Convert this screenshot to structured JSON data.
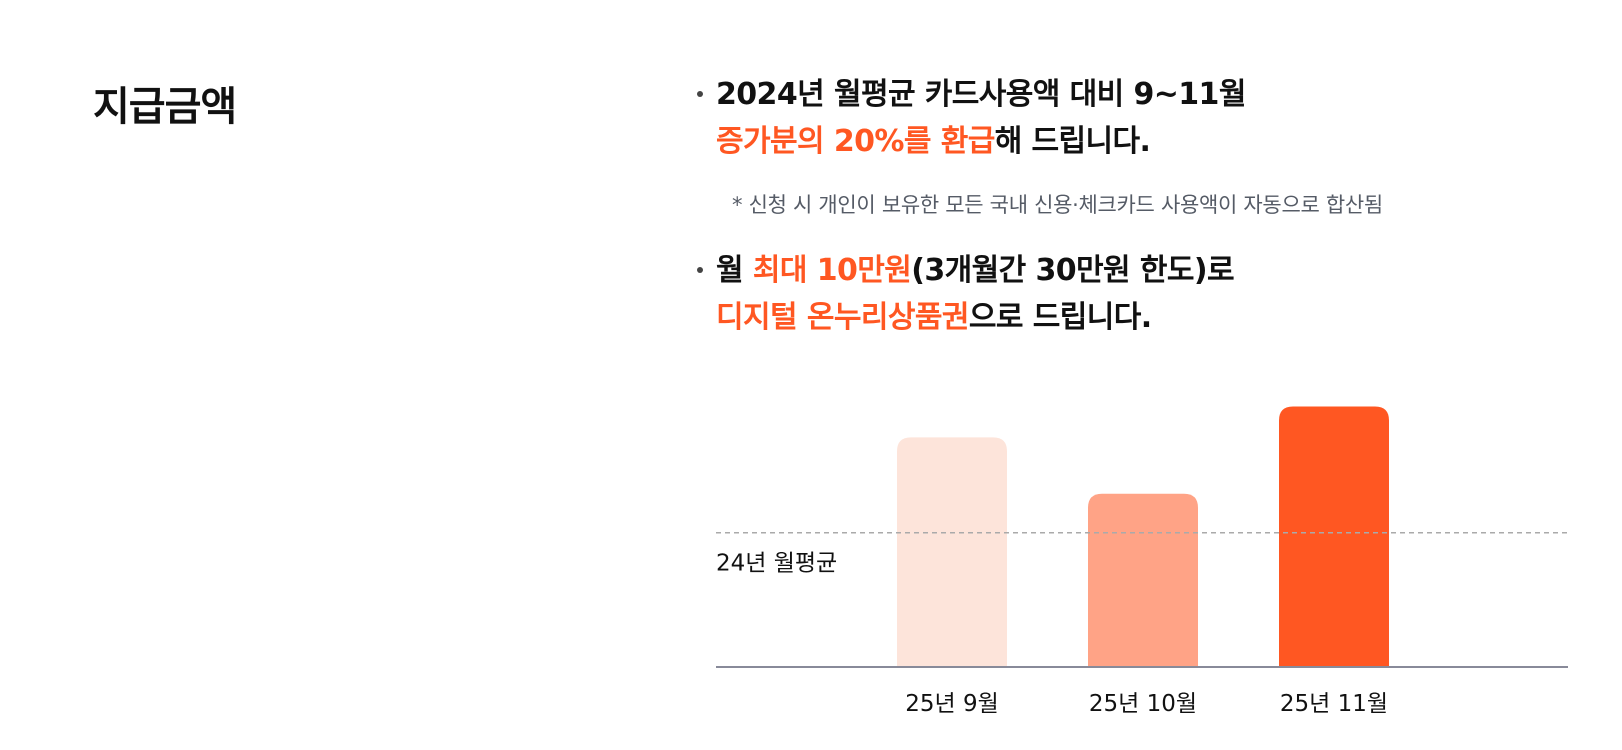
{
  "section_title": "지급금액",
  "bullet1": {
    "line1": "2024년 월평균 카드사용액 대비 9~11월",
    "line2_accent": "증가분의 20%를 환급",
    "line2_rest": "해 드립니다."
  },
  "note": "* 신청 시 개인이 보유한 모든 국내 신용·체크카드 사용액이 자동으로 합산됨",
  "bullet2": {
    "line1_prefix": "월 ",
    "line1_accent": "최대 10만원",
    "line1_rest": "(3개월간 30만원 한도)로",
    "line2_accent": "디지털 온누리상품권",
    "line2_rest": "으로 드립니다."
  },
  "colors": {
    "accent": "#ff5722",
    "bar_light": "#fde4da",
    "bar_medium": "#ffa386",
    "bar_strong": "#ff5722",
    "reference_line": "#aaaaaa",
    "axis": "#888a99"
  },
  "chart_data": {
    "type": "bar",
    "categories": [
      "25년 9월",
      "25년 10월",
      "25년 11월"
    ],
    "values": [
      1.71,
      1.29,
      1.94
    ],
    "reference_line": {
      "label": "24년 월평균",
      "value": 1.0
    },
    "ylim": [
      0,
      2.1
    ],
    "grid": false,
    "title": "",
    "xlabel": "",
    "ylabel": ""
  }
}
